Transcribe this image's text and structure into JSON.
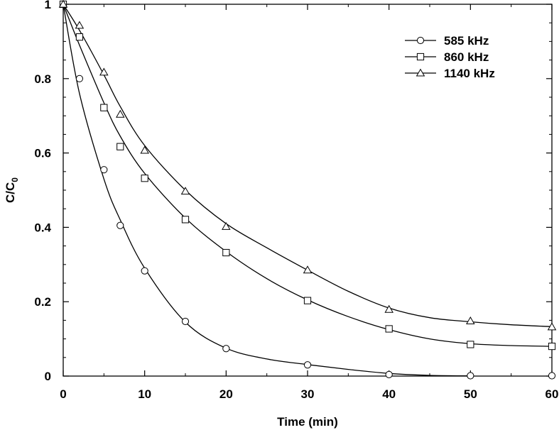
{
  "chart_data": {
    "type": "scatter",
    "title": "",
    "xlabel": "Time (min)",
    "ylabel": "C/C",
    "ylabel_sub": "0",
    "xlim": [
      0,
      60
    ],
    "ylim": [
      0,
      1
    ],
    "xticks": [
      0,
      10,
      20,
      30,
      40,
      50,
      60
    ],
    "xtick_labels": [
      "0",
      "10",
      "20",
      "30",
      "40",
      "50",
      "60"
    ],
    "yticks": [
      0,
      0.2,
      0.4,
      0.6,
      0.8,
      1
    ],
    "ytick_labels": [
      "0",
      "0.2",
      "0.4",
      "0.6",
      "0.8",
      "1"
    ],
    "grid": false,
    "legend_position": "top-right",
    "series": [
      {
        "name": "585 kHz",
        "marker": "circle",
        "x": [
          0,
          2,
          5,
          7,
          10,
          15,
          20,
          30,
          40,
          50,
          60
        ],
        "y": [
          1.0,
          0.8,
          0.555,
          0.405,
          0.283,
          0.147,
          0.074,
          0.03,
          0.004,
          0.001,
          0.001
        ],
        "fit": [
          [
            0,
            1.0
          ],
          [
            2,
            0.76
          ],
          [
            5,
            0.53
          ],
          [
            7,
            0.42
          ],
          [
            10,
            0.29
          ],
          [
            15,
            0.145
          ],
          [
            20,
            0.075
          ],
          [
            25,
            0.046
          ],
          [
            30,
            0.031
          ],
          [
            35,
            0.018
          ],
          [
            40,
            0.007
          ],
          [
            45,
            0.002
          ],
          [
            50,
            0.0005
          ]
        ]
      },
      {
        "name": "860 kHz",
        "marker": "square",
        "x": [
          0,
          2,
          5,
          7,
          10,
          15,
          20,
          30,
          40,
          50,
          60
        ],
        "y": [
          1.0,
          0.912,
          0.722,
          0.617,
          0.532,
          0.421,
          0.332,
          0.203,
          0.127,
          0.085,
          0.08
        ],
        "fit": [
          [
            0,
            1.0
          ],
          [
            2,
            0.89
          ],
          [
            5,
            0.735
          ],
          [
            7,
            0.645
          ],
          [
            10,
            0.545
          ],
          [
            15,
            0.425
          ],
          [
            20,
            0.335
          ],
          [
            25,
            0.262
          ],
          [
            30,
            0.205
          ],
          [
            35,
            0.16
          ],
          [
            40,
            0.125
          ],
          [
            45,
            0.1
          ],
          [
            50,
            0.087
          ],
          [
            55,
            0.082
          ],
          [
            60,
            0.08
          ]
        ]
      },
      {
        "name": "1140 kHz",
        "marker": "triangle",
        "x": [
          0,
          2,
          5,
          7,
          10,
          15,
          20,
          30,
          40,
          50,
          60
        ],
        "y": [
          1.0,
          0.943,
          0.817,
          0.704,
          0.607,
          0.497,
          0.402,
          0.285,
          0.179,
          0.148,
          0.132
        ],
        "fit": [
          [
            0,
            1.0
          ],
          [
            2,
            0.93
          ],
          [
            5,
            0.81
          ],
          [
            7,
            0.725
          ],
          [
            10,
            0.62
          ],
          [
            15,
            0.5
          ],
          [
            20,
            0.41
          ],
          [
            25,
            0.345
          ],
          [
            30,
            0.285
          ],
          [
            35,
            0.228
          ],
          [
            40,
            0.183
          ],
          [
            45,
            0.157
          ],
          [
            50,
            0.146
          ],
          [
            55,
            0.138
          ],
          [
            60,
            0.133
          ]
        ]
      }
    ]
  }
}
